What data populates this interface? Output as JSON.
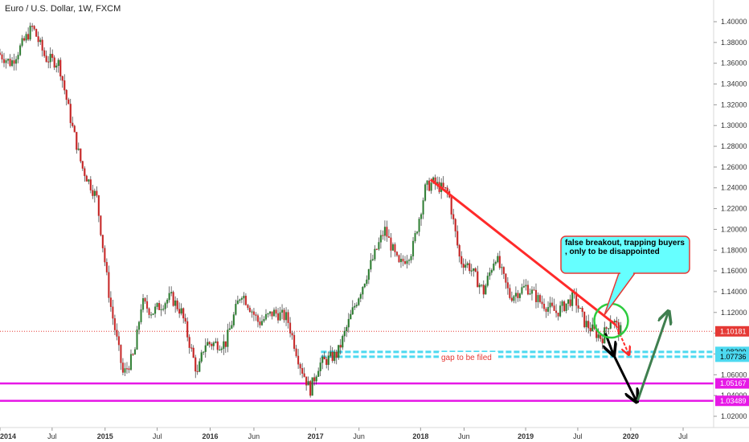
{
  "chart_data": {
    "type": "candlestick",
    "title": "Euro / U.S. Dollar, 1W, FXCM",
    "ylim": [
      1.02,
      1.41
    ],
    "x_range": [
      "2014-01-01",
      "2020-10-15"
    ],
    "y_ticks": [
      "1.40000",
      "1.38000",
      "1.36000",
      "1.34000",
      "1.32000",
      "1.30000",
      "1.28000",
      "1.26000",
      "1.24000",
      "1.22000",
      "1.20000",
      "1.18000",
      "1.16000",
      "1.14000",
      "1.12000",
      "1.10000",
      "1.08000",
      "1.06000",
      "1.04000",
      "1.02000"
    ],
    "x_ticks": [
      {
        "date": "2014-01-01",
        "label": "2014"
      },
      {
        "date": "2014-07-01",
        "label": "Jul"
      },
      {
        "date": "2015-01-01",
        "label": "2015"
      },
      {
        "date": "2015-07-01",
        "label": "Jul"
      },
      {
        "date": "2016-01-01",
        "label": "2016"
      },
      {
        "date": "2016-06-01",
        "label": "Jun"
      },
      {
        "date": "2017-01-01",
        "label": "2017"
      },
      {
        "date": "2017-06-01",
        "label": "Jun"
      },
      {
        "date": "2018-01-01",
        "label": "2018"
      },
      {
        "date": "2018-06-01",
        "label": "Jun"
      },
      {
        "date": "2019-01-01",
        "label": "2019"
      },
      {
        "date": "2019-07-01",
        "label": "Jul"
      },
      {
        "date": "2020-01-01",
        "label": "2020"
      },
      {
        "date": "2020-07-01",
        "label": "Jul"
      }
    ],
    "price_path": [
      {
        "date": "2014-01-01",
        "close": 1.37
      },
      {
        "date": "2014-02-15",
        "close": 1.36
      },
      {
        "date": "2014-05-01",
        "close": 1.395
      },
      {
        "date": "2014-06-15",
        "close": 1.365
      },
      {
        "date": "2014-08-01",
        "close": 1.36
      },
      {
        "date": "2014-09-15",
        "close": 1.3
      },
      {
        "date": "2014-10-20",
        "close": 1.26
      },
      {
        "date": "2014-12-10",
        "close": 1.23
      },
      {
        "date": "2015-01-25",
        "close": 1.13
      },
      {
        "date": "2015-03-12",
        "close": 1.06
      },
      {
        "date": "2015-04-20",
        "close": 1.08
      },
      {
        "date": "2015-05-15",
        "close": 1.13
      },
      {
        "date": "2015-06-20",
        "close": 1.12
      },
      {
        "date": "2015-08-24",
        "close": 1.135
      },
      {
        "date": "2015-10-01",
        "close": 1.12
      },
      {
        "date": "2015-11-25",
        "close": 1.06
      },
      {
        "date": "2015-12-20",
        "close": 1.09
      },
      {
        "date": "2016-03-01",
        "close": 1.09
      },
      {
        "date": "2016-04-25",
        "close": 1.14
      },
      {
        "date": "2016-06-25",
        "close": 1.11
      },
      {
        "date": "2016-08-15",
        "close": 1.12
      },
      {
        "date": "2016-10-01",
        "close": 1.115
      },
      {
        "date": "2016-11-15",
        "close": 1.07
      },
      {
        "date": "2016-12-20",
        "close": 1.045
      },
      {
        "date": "2017-01-20",
        "close": 1.07
      },
      {
        "date": "2017-03-25",
        "close": 1.08
      },
      {
        "date": "2017-05-15",
        "close": 1.12
      },
      {
        "date": "2017-07-10",
        "close": 1.16
      },
      {
        "date": "2017-09-05",
        "close": 1.2
      },
      {
        "date": "2017-10-25",
        "close": 1.165
      },
      {
        "date": "2017-12-10",
        "close": 1.18
      },
      {
        "date": "2018-01-25",
        "close": 1.24
      },
      {
        "date": "2018-02-20",
        "close": 1.245
      },
      {
        "date": "2018-04-15",
        "close": 1.235
      },
      {
        "date": "2018-05-25",
        "close": 1.17
      },
      {
        "date": "2018-06-25",
        "close": 1.165
      },
      {
        "date": "2018-08-15",
        "close": 1.14
      },
      {
        "date": "2018-09-25",
        "close": 1.175
      },
      {
        "date": "2018-11-15",
        "close": 1.135
      },
      {
        "date": "2019-01-10",
        "close": 1.145
      },
      {
        "date": "2019-03-01",
        "close": 1.13
      },
      {
        "date": "2019-04-25",
        "close": 1.12
      },
      {
        "date": "2019-06-25",
        "close": 1.135
      },
      {
        "date": "2019-08-01",
        "close": 1.11
      },
      {
        "date": "2019-09-30",
        "close": 1.095
      },
      {
        "date": "2019-11-01",
        "close": 1.115
      },
      {
        "date": "2019-12-01",
        "close": 1.1018
      }
    ],
    "current_price": {
      "value": 1.10181,
      "label": "1.10181",
      "color": "#e53935"
    },
    "horizontal_levels": [
      {
        "value": 1.082,
        "label": "1.08200",
        "color": "#4dd9f0",
        "style": "dashed",
        "start_date": "2017-01-20"
      },
      {
        "value": 1.07736,
        "label": "1.07736",
        "color": "#4dd9f0",
        "style": "dashed",
        "start_date": "2017-01-20"
      },
      {
        "value": 1.05167,
        "label": "1.05167",
        "color": "#e619e6",
        "style": "solid"
      },
      {
        "value": 1.03489,
        "label": "1.03489",
        "color": "#e619e6",
        "style": "solid"
      }
    ],
    "trendline": {
      "from": {
        "date": "2018-02-05",
        "value": 1.248
      },
      "to": {
        "date": "2019-11-10",
        "value": 1.108
      },
      "color": "#ff2a2a"
    },
    "projection_arrows": [
      {
        "from": {
          "date": "2019-11-10",
          "value": 1.108
        },
        "to": {
          "date": "2019-12-25",
          "value": 1.08
        },
        "color": "#ff2a2a",
        "style": "dashed"
      },
      {
        "from": {
          "date": "2019-10-05",
          "value": 1.1
        },
        "to": {
          "date": "2019-11-01",
          "value": 1.08
        },
        "color": "#000000",
        "style": "solid"
      },
      {
        "from": {
          "date": "2019-11-01",
          "value": 1.08
        },
        "to": {
          "date": "2020-01-20",
          "value": 1.035
        },
        "color": "#000000",
        "style": "solid"
      },
      {
        "from": {
          "date": "2020-01-25",
          "value": 1.035
        },
        "to": {
          "date": "2020-05-10",
          "value": 1.12
        },
        "color": "#3f7f4f",
        "style": "solid"
      }
    ],
    "highlight_circle": {
      "date": "2019-10-25",
      "value": 1.112,
      "color": "#2ecc40"
    },
    "annotations": [
      {
        "text": "false breakout, trapping buyers , only to be disappointed",
        "type": "callout",
        "color": "#66ffff",
        "border": "#e53935"
      },
      {
        "text": "gap to be filed",
        "type": "label",
        "color": "#e53935"
      }
    ]
  }
}
